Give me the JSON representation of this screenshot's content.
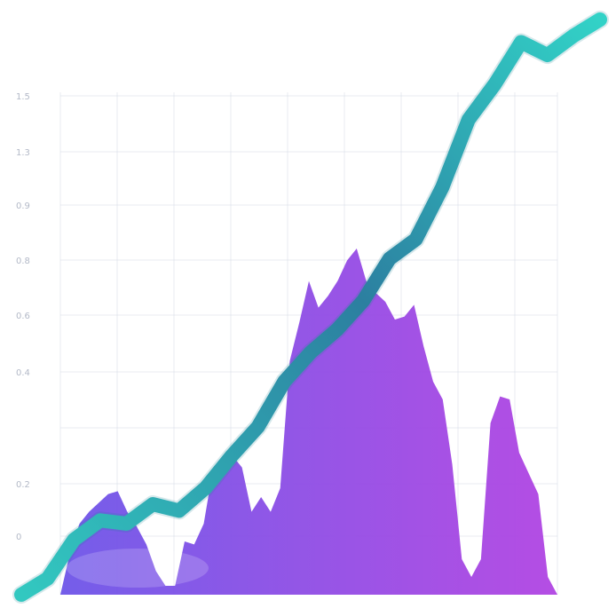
{
  "chart_data": {
    "type": "line",
    "title": "",
    "xlabel": "",
    "ylabel": "",
    "grid": true,
    "legend": "none",
    "y_ticks": [
      "1.5",
      "1.3",
      "0.9",
      "0.8",
      "0.6",
      "0.4",
      "",
      "0.2",
      "0"
    ],
    "series": [
      {
        "kind": "area",
        "values": [
          0.0,
          0.14,
          0.24,
          0.28,
          0.31,
          0.34,
          0.35,
          0.28,
          0.23,
          0.17,
          0.08,
          0.03,
          0.03,
          0.18,
          0.17,
          0.24,
          0.43,
          0.45,
          0.47,
          0.43,
          0.28,
          0.33,
          0.28,
          0.36,
          0.79,
          0.92,
          1.06,
          0.97,
          1.01,
          1.06,
          1.13,
          1.17,
          1.06,
          1.02,
          0.99,
          0.93,
          0.94,
          0.98,
          0.84,
          0.72,
          0.66,
          0.44,
          0.12,
          0.06,
          0.12,
          0.58,
          0.67,
          0.66,
          0.48,
          0.41,
          0.34,
          0.06,
          0.0
        ],
        "colors": [
          "#6d55e8",
          "#b144e2"
        ]
      },
      {
        "kind": "line",
        "values": [
          0.0,
          0.05,
          0.17,
          0.23,
          0.22,
          0.28,
          0.26,
          0.33,
          0.43,
          0.52,
          0.66,
          0.75,
          0.82,
          0.91,
          1.04,
          1.1,
          1.26,
          1.47,
          1.58,
          1.71,
          1.67,
          1.73,
          1.78
        ],
        "color": "#2ec9bf"
      }
    ]
  }
}
